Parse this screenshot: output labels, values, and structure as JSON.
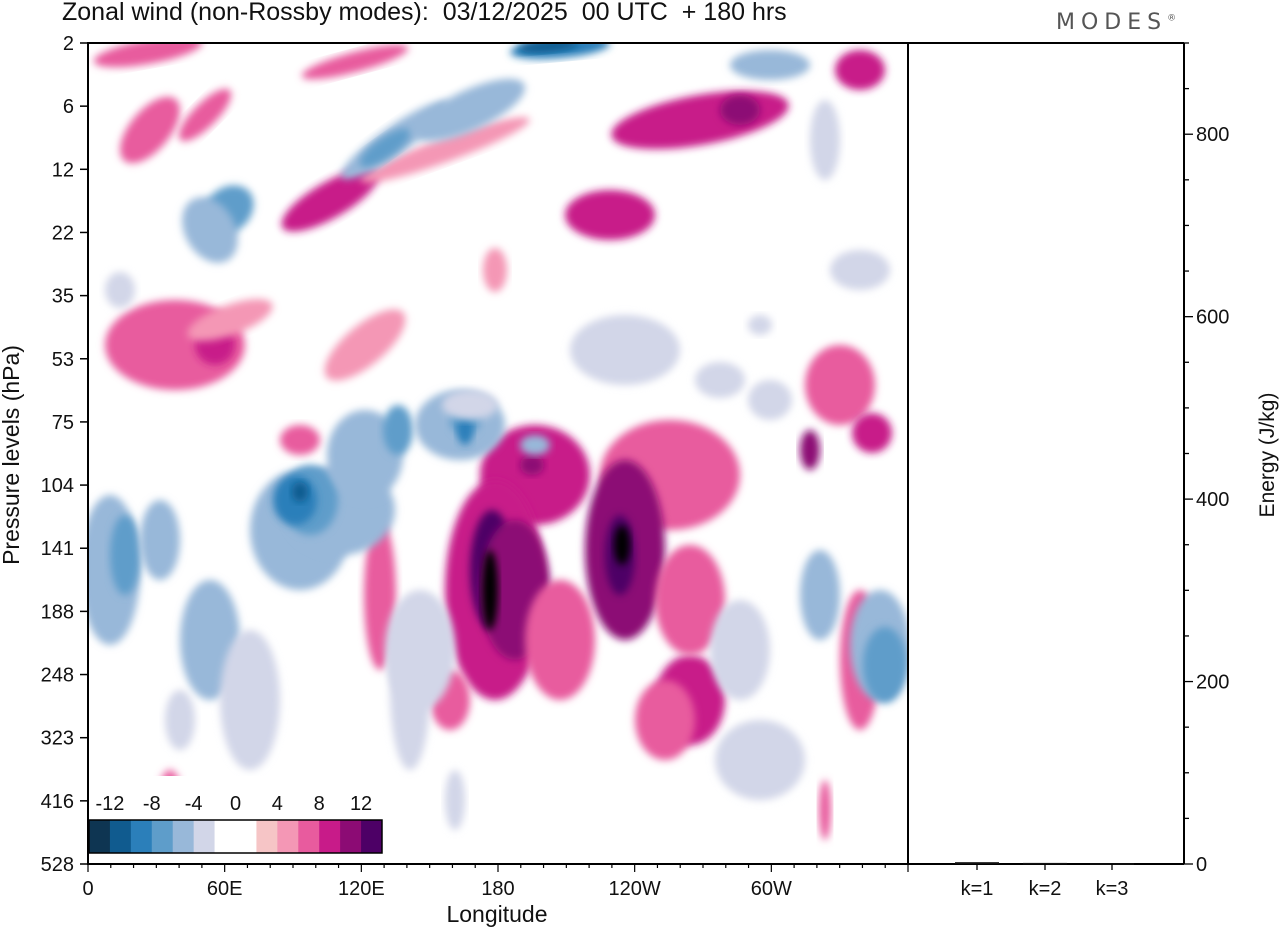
{
  "header": {
    "title": "Zonal wind (non-Rossby modes):  03/12/2025  00 UTC  + 180 hrs",
    "brand": "MODES",
    "brand_mark": "®"
  },
  "chart_data": [
    {
      "type": "heatmap",
      "title": "Zonal wind (non-Rossby modes)",
      "xlabel": "Longitude",
      "ylabel": "Pressure levels (hPa)",
      "x_ticks": [
        "0",
        "60E",
        "120E",
        "180",
        "120W",
        "60W"
      ],
      "x_range_deg": [
        0,
        360
      ],
      "y_ticks": [
        "2",
        "6",
        "12",
        "22",
        "35",
        "53",
        "75",
        "104",
        "141",
        "188",
        "248",
        "323",
        "416",
        "528"
      ],
      "colorbar": {
        "labels": [
          "-12",
          "-8",
          "-4",
          "0",
          "4",
          "8",
          "12"
        ],
        "levels": [
          -14,
          -12,
          -10,
          -8,
          -6,
          -4,
          -2,
          2,
          4,
          6,
          8,
          10,
          12,
          14
        ],
        "colors": [
          "#0e3552",
          "#105b8f",
          "#2b7fba",
          "#5e9dca",
          "#98b8d9",
          "#d2d6e8",
          "#ffffff",
          "#ffffff",
          "#f6c5c6",
          "#f497b5",
          "#e85b9e",
          "#c81b89",
          "#8c0b74",
          "#4d0066"
        ]
      },
      "grid": false
    },
    {
      "type": "bar",
      "ylabel": "Energy (J/kg)",
      "categories": [
        "k=1",
        "k=2",
        "k=3"
      ],
      "values": [
        2,
        1.2,
        0.8
      ],
      "ylim": [
        0,
        900
      ],
      "y_ticks": [
        "0",
        "200",
        "400",
        "600",
        "800"
      ],
      "y_tick_values": [
        0,
        200,
        400,
        600,
        800
      ]
    }
  ]
}
